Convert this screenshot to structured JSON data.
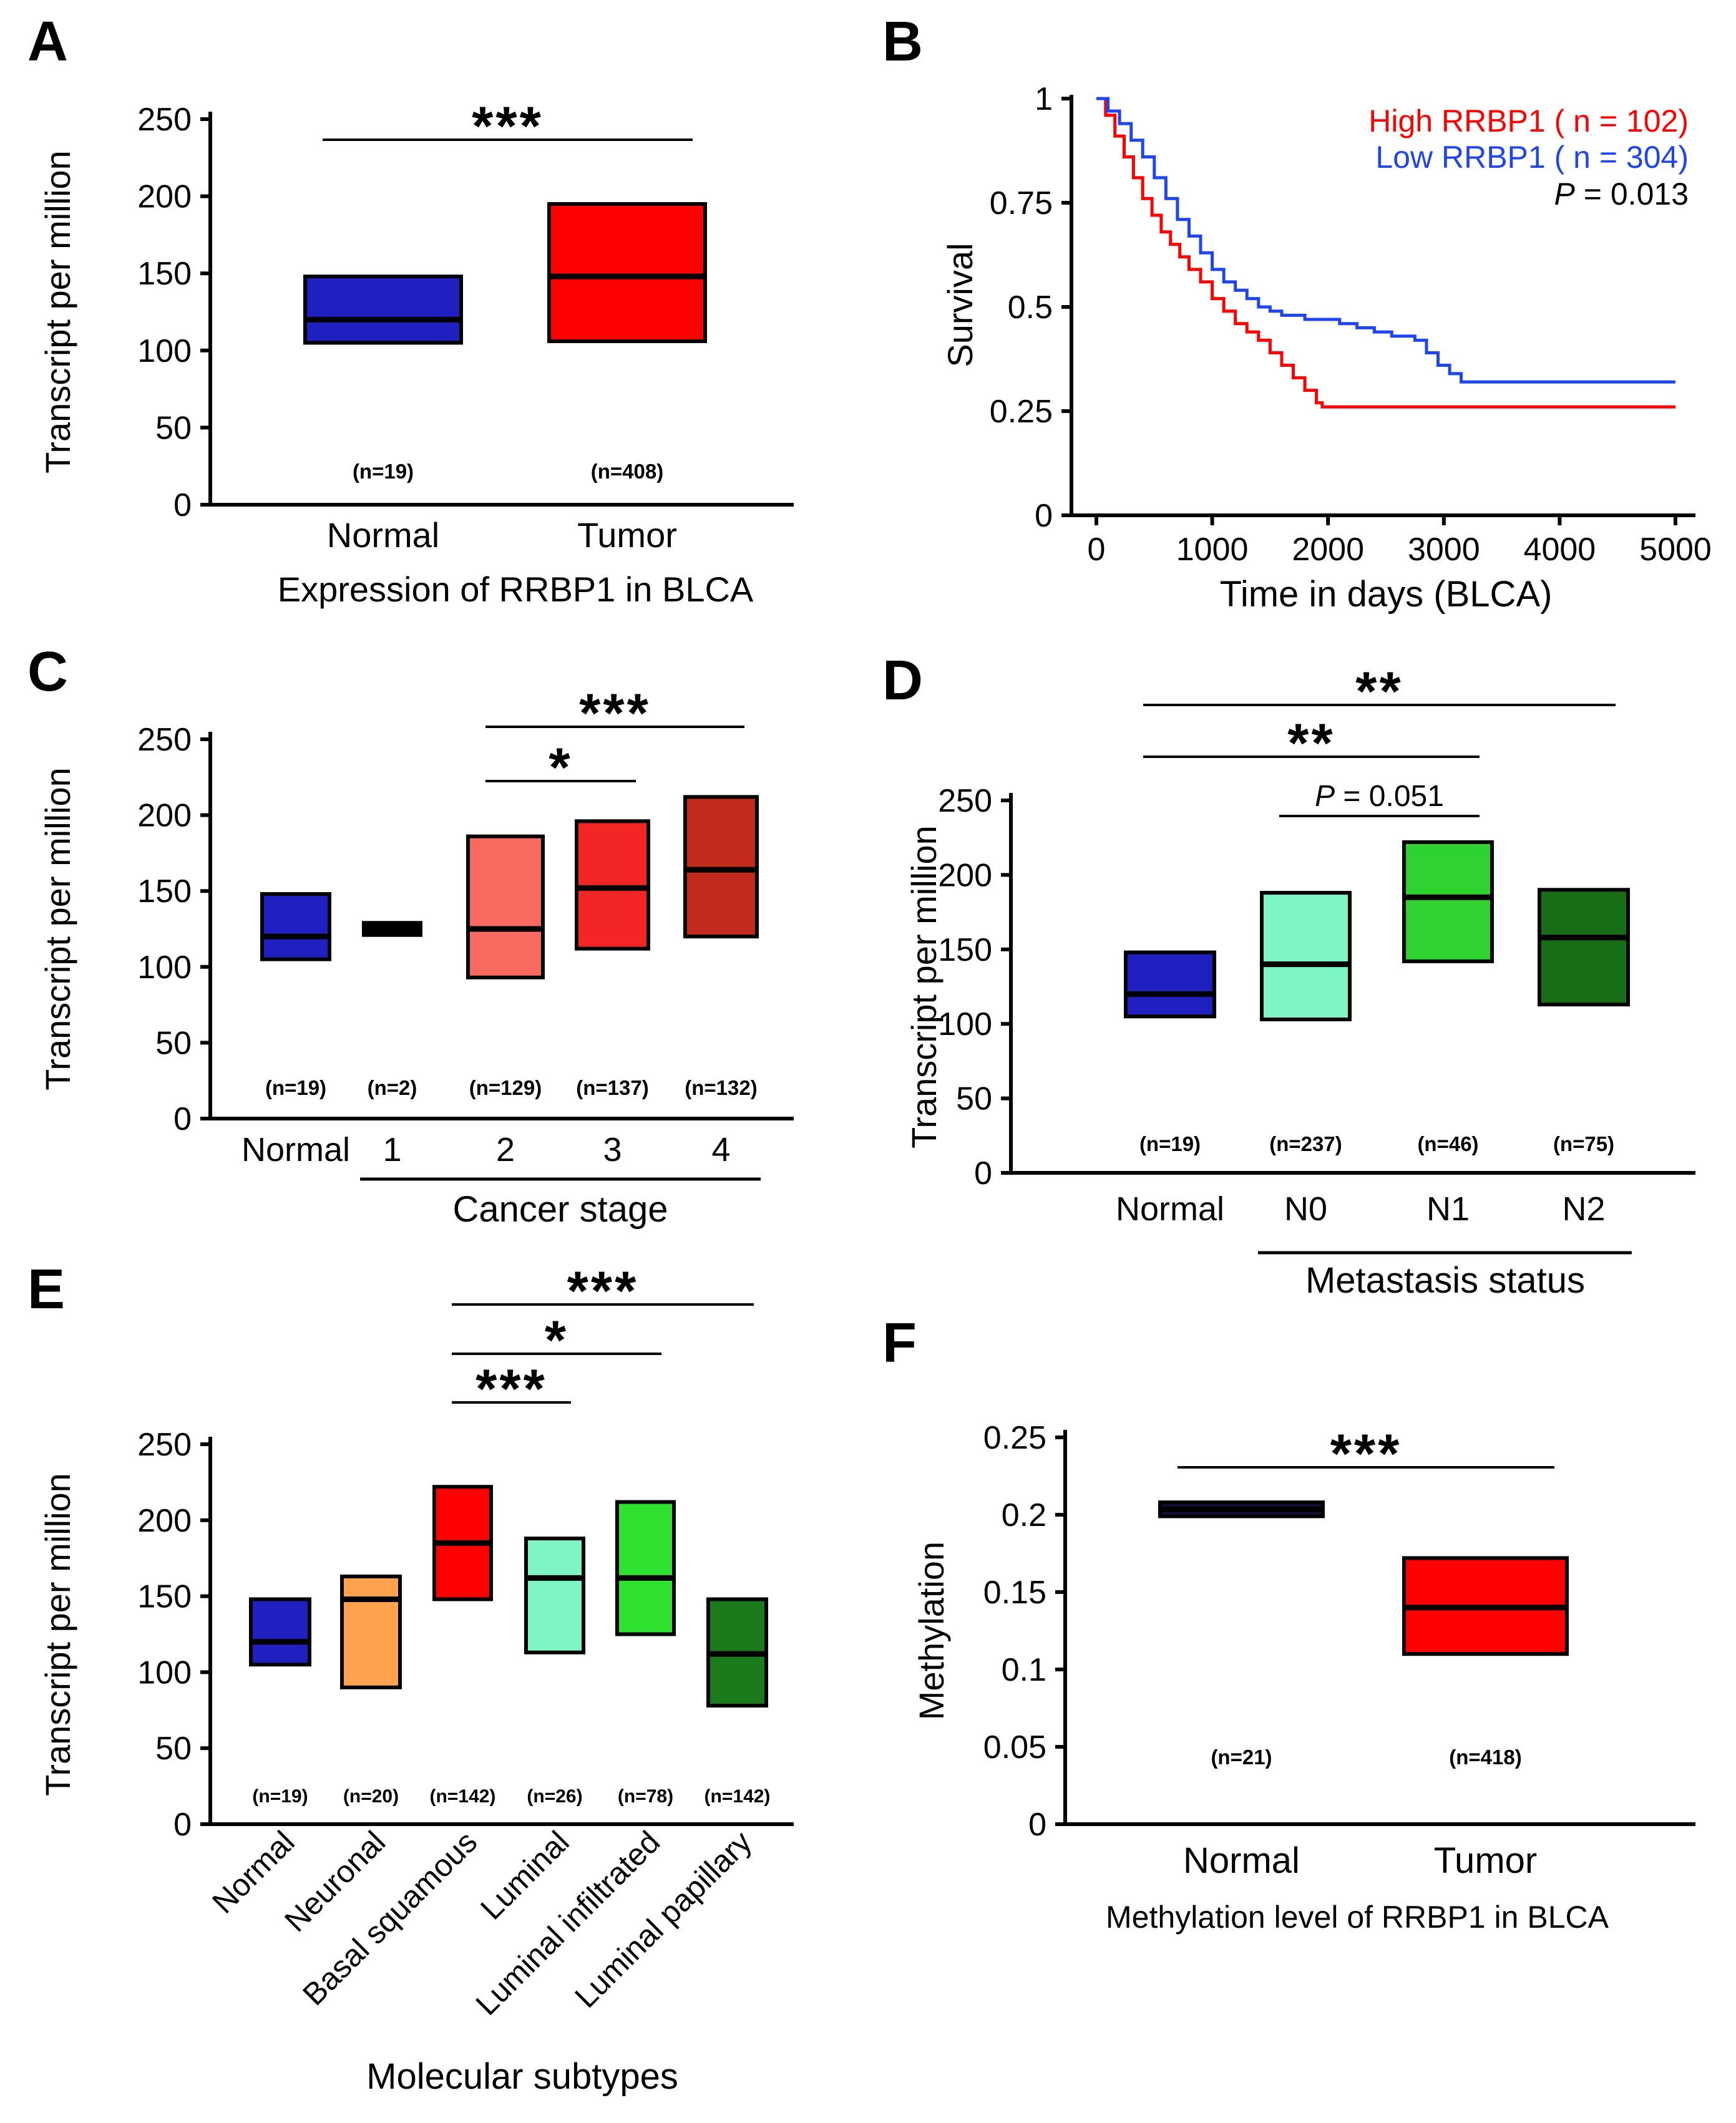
{
  "panels": {
    "A": {
      "letter": "A"
    },
    "B": {
      "letter": "B"
    },
    "C": {
      "letter": "C"
    },
    "D": {
      "letter": "D"
    },
    "E": {
      "letter": "E"
    },
    "F": {
      "letter": "F"
    }
  },
  "chart_data": [
    {
      "panel": "A",
      "type": "box",
      "title": "Expression of RRBP1 in BLCA",
      "ylabel": "Transcript per million",
      "ylim": [
        0,
        250
      ],
      "yticks": [
        0,
        50,
        100,
        150,
        200,
        250
      ],
      "groups": [
        {
          "label": "Normal",
          "n_label": "(n=19)",
          "color": "#2020c0",
          "q1": 105,
          "median": 120,
          "q3": 148
        },
        {
          "label": "Tumor",
          "n_label": "(n=408)",
          "color": "#fe0000",
          "q1": 106,
          "median": 148,
          "q3": 195
        }
      ],
      "significance": [
        {
          "from": 0,
          "to": 1,
          "label": "***"
        }
      ]
    },
    {
      "panel": "B",
      "type": "survival",
      "xlabel": "Time in days (BLCA)",
      "ylabel": "Survival",
      "xlim": [
        0,
        5000
      ],
      "xticks": [
        0,
        1000,
        2000,
        3000,
        4000,
        5000
      ],
      "ylim": [
        0,
        1
      ],
      "yticks": [
        0,
        0.25,
        0.5,
        0.75,
        1
      ],
      "p_label": "P = 0.013",
      "legend_position": "top-right",
      "series": [
        {
          "name": "High RRBP1 ( n = 102)",
          "color": "#fe0000",
          "points": [
            [
              0,
              1
            ],
            [
              80,
              0.96
            ],
            [
              160,
              0.91
            ],
            [
              240,
              0.86
            ],
            [
              320,
              0.81
            ],
            [
              400,
              0.76
            ],
            [
              480,
              0.72
            ],
            [
              560,
              0.68
            ],
            [
              640,
              0.65
            ],
            [
              720,
              0.62
            ],
            [
              800,
              0.59
            ],
            [
              900,
              0.56
            ],
            [
              1000,
              0.52
            ],
            [
              1100,
              0.49
            ],
            [
              1200,
              0.46
            ],
            [
              1300,
              0.44
            ],
            [
              1400,
              0.42
            ],
            [
              1500,
              0.39
            ],
            [
              1600,
              0.36
            ],
            [
              1700,
              0.33
            ],
            [
              1800,
              0.3
            ],
            [
              1900,
              0.27
            ],
            [
              1950,
              0.26
            ],
            [
              5000,
              0.26
            ]
          ]
        },
        {
          "name": "Low RRBP1 ( n = 304)",
          "color": "#1f45f0",
          "points": [
            [
              0,
              1
            ],
            [
              100,
              0.97
            ],
            [
              200,
              0.94
            ],
            [
              300,
              0.9
            ],
            [
              400,
              0.86
            ],
            [
              500,
              0.81
            ],
            [
              600,
              0.76
            ],
            [
              700,
              0.71
            ],
            [
              800,
              0.67
            ],
            [
              900,
              0.63
            ],
            [
              1000,
              0.59
            ],
            [
              1100,
              0.56
            ],
            [
              1200,
              0.54
            ],
            [
              1300,
              0.52
            ],
            [
              1400,
              0.5
            ],
            [
              1500,
              0.49
            ],
            [
              1600,
              0.48
            ],
            [
              1800,
              0.47
            ],
            [
              2100,
              0.46
            ],
            [
              2250,
              0.45
            ],
            [
              2400,
              0.44
            ],
            [
              2550,
              0.43
            ],
            [
              2750,
              0.42
            ],
            [
              2850,
              0.39
            ],
            [
              2950,
              0.36
            ],
            [
              3050,
              0.34
            ],
            [
              3150,
              0.32
            ],
            [
              5000,
              0.32
            ]
          ]
        }
      ]
    },
    {
      "panel": "C",
      "type": "box",
      "group_axis_label": "Cancer stage",
      "ylabel": "Transcript per million",
      "ylim": [
        0,
        250
      ],
      "yticks": [
        0,
        50,
        100,
        150,
        200,
        250
      ],
      "groups": [
        {
          "label": "Normal",
          "n_label": "(n=19)",
          "color": "#2020c0",
          "q1": 105,
          "median": 120,
          "q3": 148
        },
        {
          "label": "1",
          "n_label": "(n=2)",
          "color": "#000000",
          "q1": 121,
          "median": 125,
          "q3": 129
        },
        {
          "label": "2",
          "n_label": "(n=129)",
          "color": "#f8695f",
          "q1": 93,
          "median": 125,
          "q3": 186
        },
        {
          "label": "3",
          "n_label": "(n=137)",
          "color": "#f42525",
          "q1": 112,
          "median": 152,
          "q3": 196
        },
        {
          "label": "4",
          "n_label": "(n=132)",
          "color": "#c22a1e",
          "q1": 120,
          "median": 164,
          "q3": 212
        }
      ],
      "significance": [
        {
          "from": 2,
          "to": 4,
          "label": "***"
        },
        {
          "from": 2,
          "to": 3,
          "label": "*"
        }
      ],
      "bracket": [
        1,
        4
      ]
    },
    {
      "panel": "D",
      "type": "box",
      "group_axis_label": "Metastasis status",
      "ylabel": "Transcript per million",
      "ylim": [
        0,
        250
      ],
      "yticks": [
        0,
        50,
        100,
        150,
        200,
        250
      ],
      "groups": [
        {
          "label": "Normal",
          "n_label": "(n=19)",
          "color": "#2020c0",
          "q1": 105,
          "median": 120,
          "q3": 148
        },
        {
          "label": "N0",
          "n_label": "(n=237)",
          "color": "#7df5c4",
          "q1": 103,
          "median": 140,
          "q3": 188
        },
        {
          "label": "N1",
          "n_label": "(n=46)",
          "color": "#2fd32f",
          "q1": 142,
          "median": 185,
          "q3": 222
        },
        {
          "label": "N2",
          "n_label": "(n=75)",
          "color": "#176e17",
          "q1": 113,
          "median": 158,
          "q3": 190
        }
      ],
      "significance": [
        {
          "from": 0,
          "to": 3,
          "label": "**"
        },
        {
          "from": 0,
          "to": 2,
          "label": "**"
        },
        {
          "from": 1,
          "to": 2,
          "label": "P = 0.051",
          "is_p": true
        }
      ],
      "bracket": [
        1,
        3
      ]
    },
    {
      "panel": "E",
      "type": "box",
      "group_axis_label": "Molecular subtypes",
      "ylabel": "Transcript per million",
      "ylim": [
        0,
        250
      ],
      "yticks": [
        0,
        50,
        100,
        150,
        200,
        250
      ],
      "groups": [
        {
          "label": "Normal",
          "n_label": "(n=19)",
          "color": "#2020c0",
          "q1": 105,
          "median": 120,
          "q3": 148
        },
        {
          "label": "Neuronal",
          "n_label": "(n=20)",
          "color": "#ffa24d",
          "q1": 90,
          "median": 148,
          "q3": 163
        },
        {
          "label": "Basal squamous",
          "n_label": "(n=142)",
          "color": "#fe0000",
          "q1": 148,
          "median": 185,
          "q3": 222
        },
        {
          "label": "Luminal",
          "n_label": "(n=26)",
          "color": "#7df5c4",
          "q1": 113,
          "median": 162,
          "q3": 188
        },
        {
          "label": "Luminal infiltrated",
          "n_label": "(n=78)",
          "color": "#2fe22f",
          "q1": 125,
          "median": 162,
          "q3": 212
        },
        {
          "label": "Luminal papillary",
          "n_label": "(n=142)",
          "color": "#1b7a1b",
          "q1": 78,
          "median": 112,
          "q3": 148
        }
      ],
      "significance": [
        {
          "from": 2,
          "to": 5,
          "label": "***"
        },
        {
          "from": 2,
          "to": 4,
          "label": "*"
        },
        {
          "from": 2,
          "to": 3,
          "label": "***"
        }
      ]
    },
    {
      "panel": "F",
      "type": "box",
      "title": "Methylation level of RRBP1 in BLCA",
      "ylabel": "Methylation",
      "ylim": [
        0,
        0.25
      ],
      "yticks": [
        0,
        0.05,
        0.1,
        0.15,
        0.2,
        0.25
      ],
      "groups": [
        {
          "label": "Normal",
          "n_label": "(n=21)",
          "color": "#10103a",
          "q1": 0.199,
          "median": 0.2035,
          "q3": 0.208
        },
        {
          "label": "Tumor",
          "n_label": "(n=418)",
          "color": "#fe0000",
          "q1": 0.11,
          "median": 0.14,
          "q3": 0.172
        }
      ],
      "significance": [
        {
          "from": 0,
          "to": 1,
          "label": "***"
        }
      ]
    }
  ]
}
